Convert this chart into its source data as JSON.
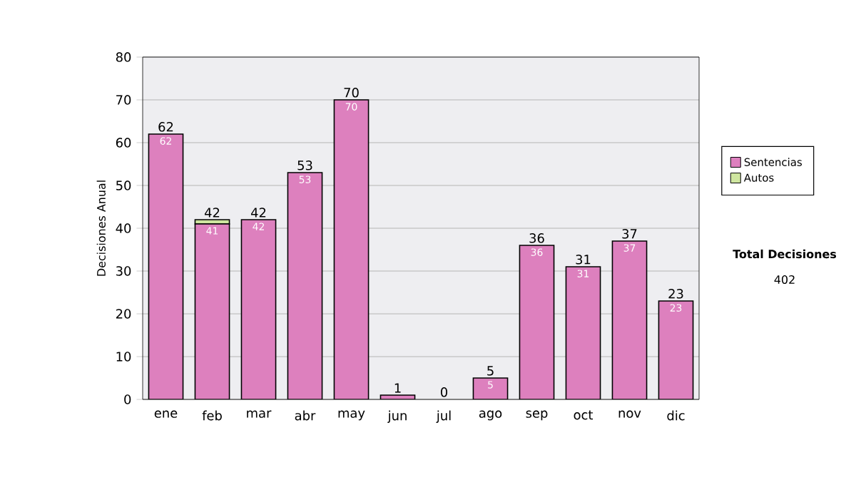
{
  "chart_data": {
    "type": "bar",
    "stacked": true,
    "ylabel": "Decisiones Anual",
    "categories": [
      "ene",
      "feb",
      "mar",
      "abr",
      "may",
      "jun",
      "jul",
      "ago",
      "sep",
      "oct",
      "nov",
      "dic"
    ],
    "series": [
      {
        "name": "Sentencias",
        "color": "#dd80be",
        "values": [
          62,
          41,
          42,
          53,
          70,
          1,
          0,
          5,
          36,
          31,
          37,
          23
        ],
        "value_labels": [
          "62",
          "41",
          "42",
          "53",
          "70",
          null,
          null,
          "5",
          "36",
          "31",
          "37",
          "23"
        ]
      },
      {
        "name": "Autos",
        "color": "#cfe6a0",
        "values": [
          0,
          1,
          0,
          0,
          0,
          0,
          0,
          0,
          0,
          0,
          0,
          0
        ]
      }
    ],
    "totals": [
      "62",
      "42",
      "42",
      "53",
      "70",
      "1",
      "0",
      "5",
      "36",
      "31",
      "37",
      "23"
    ],
    "ylim": [
      0,
      80
    ],
    "yticks": [
      0,
      10,
      20,
      30,
      40,
      50,
      60,
      70,
      80
    ],
    "grid": "y",
    "legend": "right",
    "annotations": [
      "Total Decisiones",
      "402"
    ]
  }
}
